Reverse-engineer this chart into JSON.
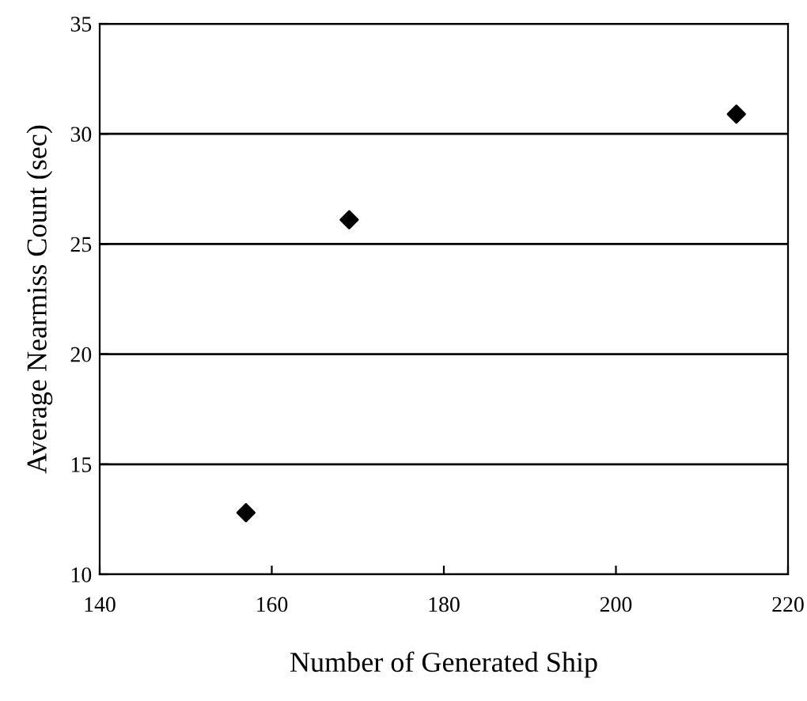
{
  "chart_data": {
    "type": "scatter",
    "xlabel": "Number of Generated Ship",
    "ylabel": "Average Nearmiss Count (sec)",
    "x": [
      157,
      169,
      214
    ],
    "values": [
      12.8,
      26.1,
      30.9
    ],
    "color": "#000000",
    "marker": "diamond",
    "xlim": [
      140,
      220
    ],
    "xticks": [
      140,
      160,
      180,
      200,
      220
    ],
    "ylim": [
      10,
      35
    ],
    "yticks": [
      10,
      15,
      20,
      25,
      30,
      35
    ],
    "grid": "y",
    "legend": false
  }
}
